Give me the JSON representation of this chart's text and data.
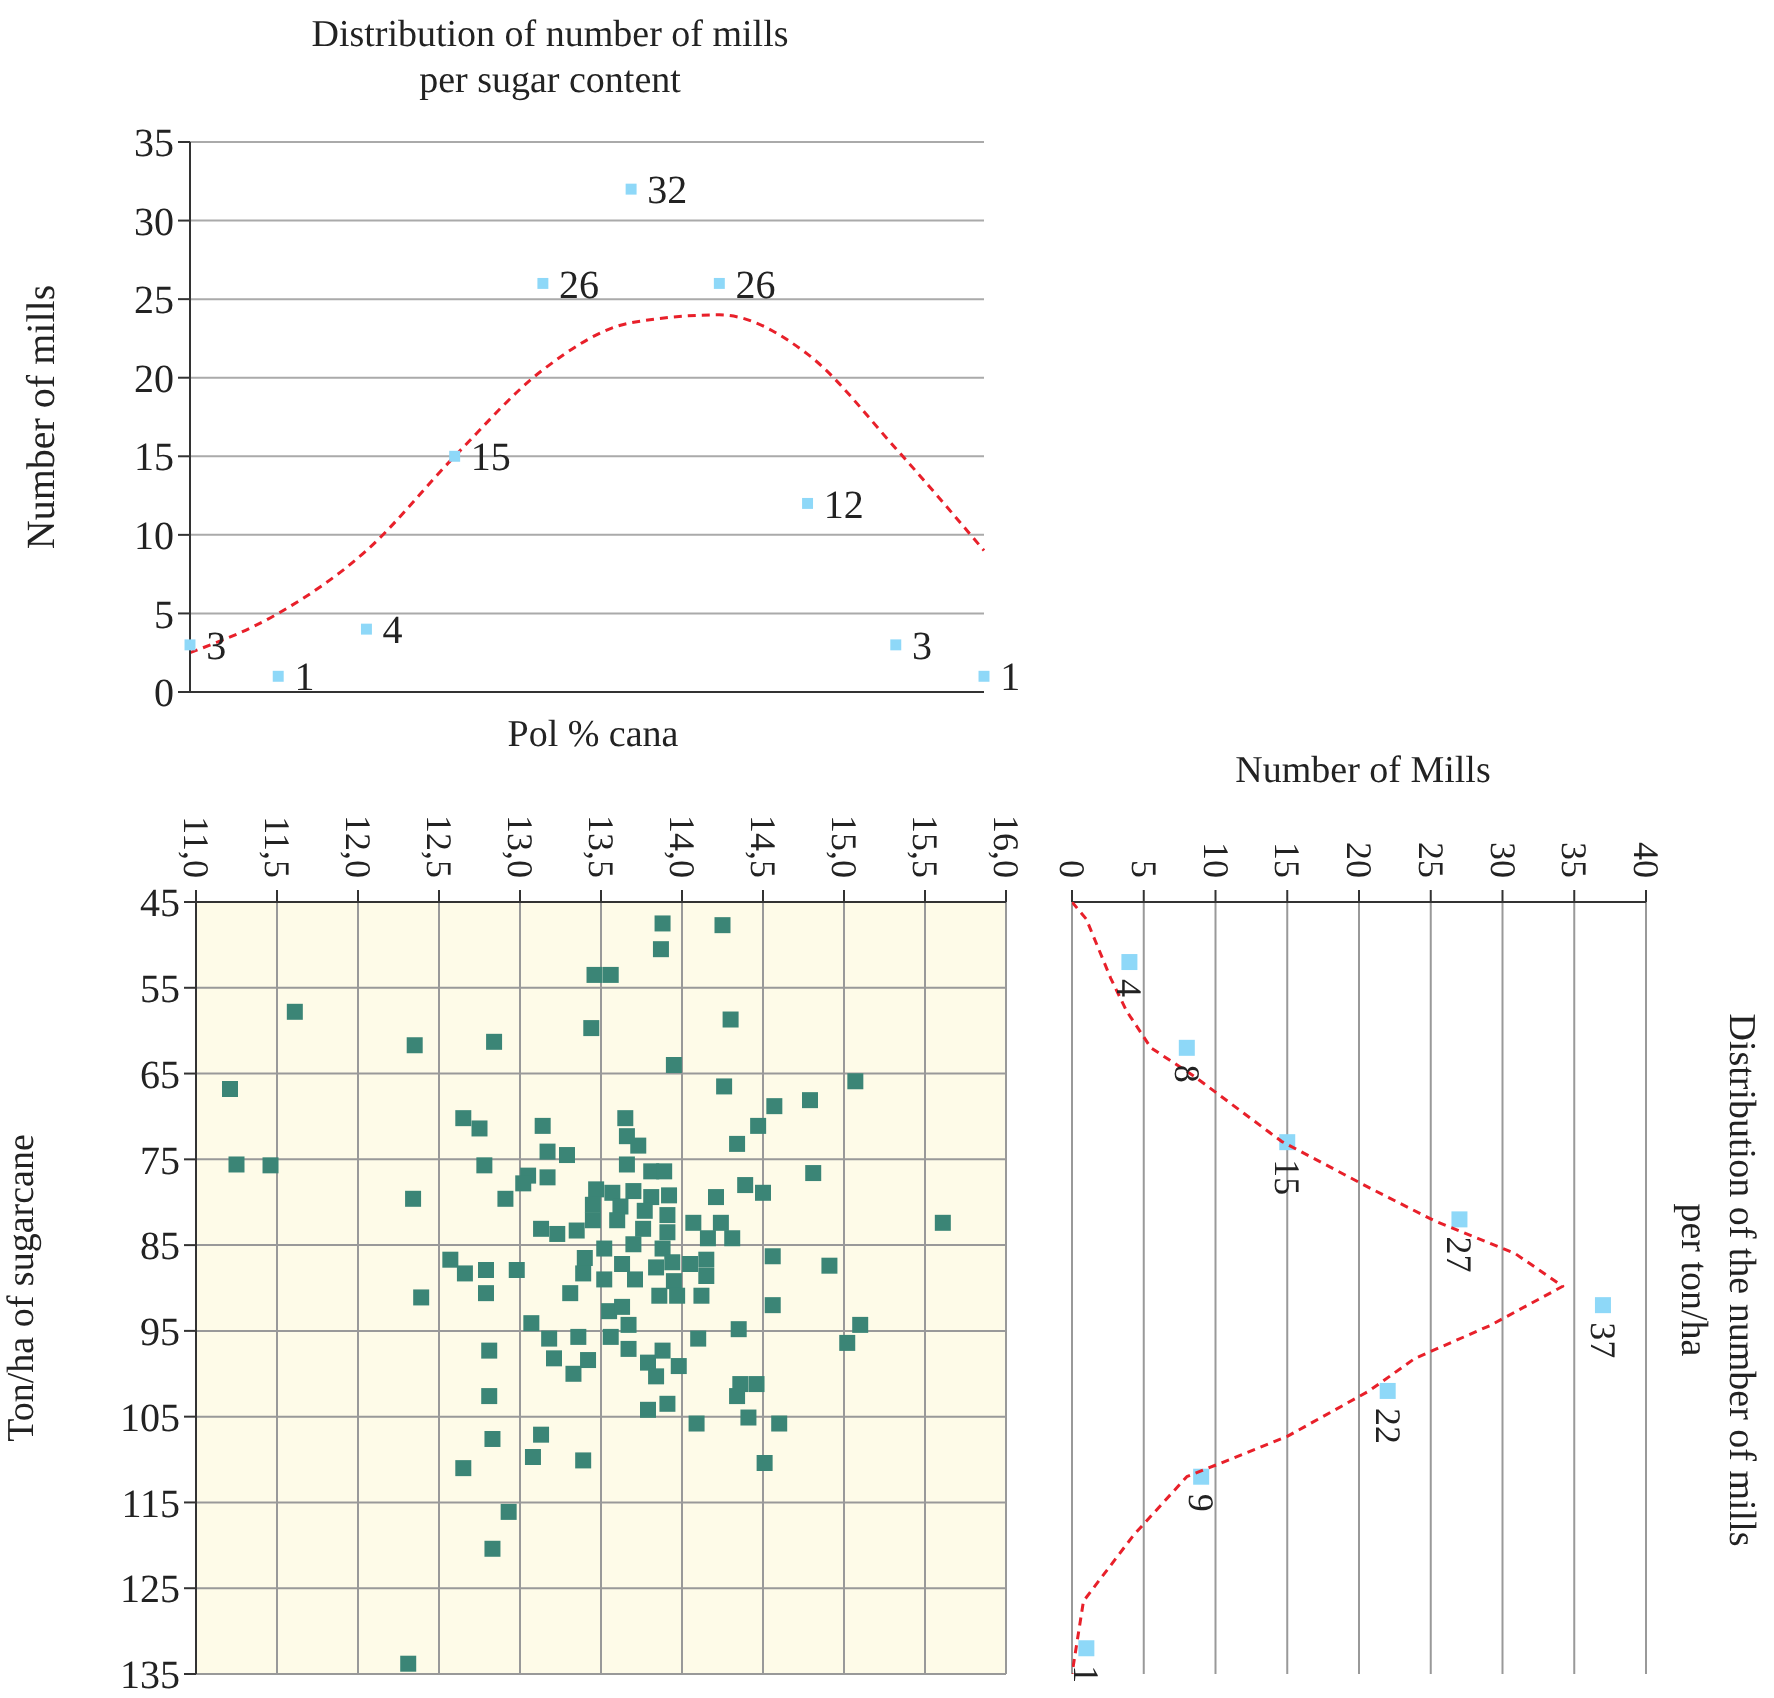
{
  "chart_data": [
    {
      "type": "scatter",
      "title": "Distribution of number of mills per sugar content",
      "ylabel": "Number of mills",
      "categories": [
        null,
        null,
        null,
        null,
        null,
        null,
        null,
        null,
        null,
        null
      ],
      "ylim": [
        0,
        35
      ],
      "yticks": [
        0,
        5,
        10,
        15,
        20,
        25,
        30,
        35
      ],
      "grid": "y",
      "tick_labels": "y",
      "series": [
        {
          "color": "#8ed8f8",
          "marker": "square",
          "data_labels": true,
          "values": [
            3,
            1,
            4,
            15,
            26,
            32,
            26,
            12,
            3,
            1
          ]
        },
        {
          "type": "line",
          "color": "#e8202a",
          "line_style": "dashed",
          "marker": "none",
          "values": [
            2.5,
            5,
            9,
            15,
            20.5,
            23.5,
            24,
            21.5,
            15.5,
            9
          ]
        }
      ]
    },
    {
      "type": "scatter",
      "xlabel": "Pol % cana",
      "ylabel": "Ton/ha of sugarcane",
      "xlim": [
        11,
        16
      ],
      "xticks": [
        {
          "value": 11,
          "label": "11,0"
        },
        {
          "value": 11.5,
          "label": "11,5"
        },
        {
          "value": 12,
          "label": "12,0"
        },
        {
          "value": 12.5,
          "label": "12,5"
        },
        {
          "value": 13,
          "label": "13,0"
        },
        {
          "value": 13.5,
          "label": "13,5"
        },
        {
          "value": 14,
          "label": "14,0"
        },
        {
          "value": 14.5,
          "label": "14,5"
        },
        {
          "value": 15,
          "label": "15,0"
        },
        {
          "value": 15.5,
          "label": "15,5"
        },
        {
          "value": 16,
          "label": "16,0"
        }
      ],
      "ylim": [
        135,
        45
      ],
      "yticks": [
        45,
        55,
        65,
        75,
        85,
        95,
        105,
        115,
        125,
        135
      ],
      "grid": true,
      "marker": "square",
      "series": [
        {
          "color": "#3b8576",
          "x": [
            13.88,
            14.25,
            13.87,
            13.46,
            13.56,
            11.61,
            14.3,
            13.44,
            12.35,
            12.84,
            13.95,
            11.21,
            15.07,
            14.26,
            14.79,
            14.57,
            12.65,
            12.75,
            13.14,
            13.65,
            13.66,
            13.73,
            14.47,
            14.34,
            13.17,
            13.29,
            11.25,
            11.46,
            12.78,
            13.66,
            13.81,
            13.89,
            14.81,
            13.05,
            13.17,
            13.02,
            12.34,
            12.91,
            13.47,
            13.57,
            13.7,
            13.81,
            13.92,
            14.21,
            14.39,
            14.5,
            13.45,
            13.62,
            13.77,
            13.91,
            13.45,
            13.6,
            15.61,
            14.07,
            14.24,
            13.13,
            13.23,
            13.35,
            13.76,
            13.91,
            14.16,
            14.31,
            13.52,
            13.7,
            13.88,
            14.56,
            12.57,
            13.4,
            13.63,
            13.94,
            14.05,
            14.15,
            14.91,
            12.66,
            12.79,
            12.98,
            13.39,
            13.52,
            13.71,
            13.84,
            13.95,
            14.15,
            12.39,
            12.79,
            13.31,
            13.86,
            13.97,
            14.12,
            14.56,
            15.1,
            15.02,
            13.07,
            13.55,
            13.63,
            13.67,
            13.18,
            13.36,
            13.56,
            14.1,
            14.35,
            12.81,
            13.21,
            13.42,
            13.67,
            13.79,
            13.88,
            13.98,
            13.33,
            13.84,
            14.36,
            14.46,
            14.34,
            12.81,
            13.79,
            13.91,
            14.09,
            14.41,
            14.6,
            12.83,
            13.13,
            13.08,
            13.39,
            12.65,
            14.51,
            12.93,
            12.83,
            12.31
          ],
          "values": [
            47.5,
            47.7,
            50.5,
            53.5,
            53.5,
            57.8,
            58.7,
            59.7,
            61.7,
            61.3,
            64,
            66.8,
            65.9,
            66.5,
            68.1,
            68.8,
            70.2,
            71.4,
            71.1,
            70.2,
            72.3,
            73.4,
            71.1,
            73.2,
            74.1,
            74.5,
            75.6,
            75.7,
            75.7,
            75.6,
            76.4,
            76.4,
            76.6,
            76.9,
            77.1,
            77.8,
            79.6,
            79.6,
            78.5,
            78.9,
            78.7,
            79.4,
            79.2,
            79.4,
            78,
            78.9,
            80.3,
            80.5,
            81,
            81.5,
            82.1,
            82.1,
            82.4,
            82.4,
            82.4,
            83.1,
            83.7,
            83.3,
            83.1,
            83.5,
            84.2,
            84.2,
            85.4,
            84.9,
            85.4,
            86.3,
            86.7,
            86.5,
            87.2,
            87,
            87.2,
            86.7,
            87.4,
            88.3,
            87.9,
            87.9,
            88.3,
            89,
            89,
            87.6,
            89.2,
            88.6,
            91.1,
            90.6,
            90.6,
            90.9,
            90.9,
            90.9,
            92,
            94.3,
            96.4,
            94.1,
            92.7,
            92.2,
            94.3,
            95.9,
            95.7,
            95.7,
            95.9,
            94.8,
            97.3,
            98.2,
            98.4,
            97.1,
            98.7,
            97.3,
            99.1,
            100,
            100.3,
            101.2,
            101.2,
            102.6,
            102.6,
            104.2,
            103.5,
            105.8,
            105.1,
            105.8,
            107.6,
            107.1,
            109.7,
            110.1,
            111,
            110.4,
            116.1,
            120.4,
            133.8
          ]
        }
      ]
    },
    {
      "type": "scatter",
      "orientation": "horizontal",
      "title": "Distribution of the number of mills per ton/ha",
      "xlabel": "Number of Mills",
      "xlim": [
        0,
        40
      ],
      "xticks": [
        0,
        5,
        10,
        15,
        20,
        25,
        30,
        35,
        40
      ],
      "ylim": [
        135,
        45
      ],
      "tick_labels": "x",
      "grid": "x",
      "series": [
        {
          "color": "#8ed8f8",
          "marker": "square",
          "data_labels": true,
          "x": [
            52,
            62,
            73,
            82,
            92,
            102,
            112,
            132
          ],
          "values": [
            4,
            8,
            15,
            27,
            37,
            22,
            9,
            1
          ]
        },
        {
          "type": "line",
          "color": "#e8202a",
          "line_style": "dashed",
          "marker": "none",
          "x": [
            45,
            47,
            53.9,
            57.7,
            62,
            65.3,
            72.9,
            78.3,
            82.2,
            86,
            89.8,
            94.4,
            98.2,
            102,
            107.3,
            112,
            118.8,
            126.5,
            135
          ],
          "values": [
            0,
            1,
            2.7,
            3.8,
            5.5,
            8.5,
            14.6,
            20.7,
            25.3,
            30.9,
            34.2,
            29.1,
            23.9,
            20.7,
            15,
            8,
            4.3,
            0.8,
            0
          ]
        }
      ]
    }
  ]
}
